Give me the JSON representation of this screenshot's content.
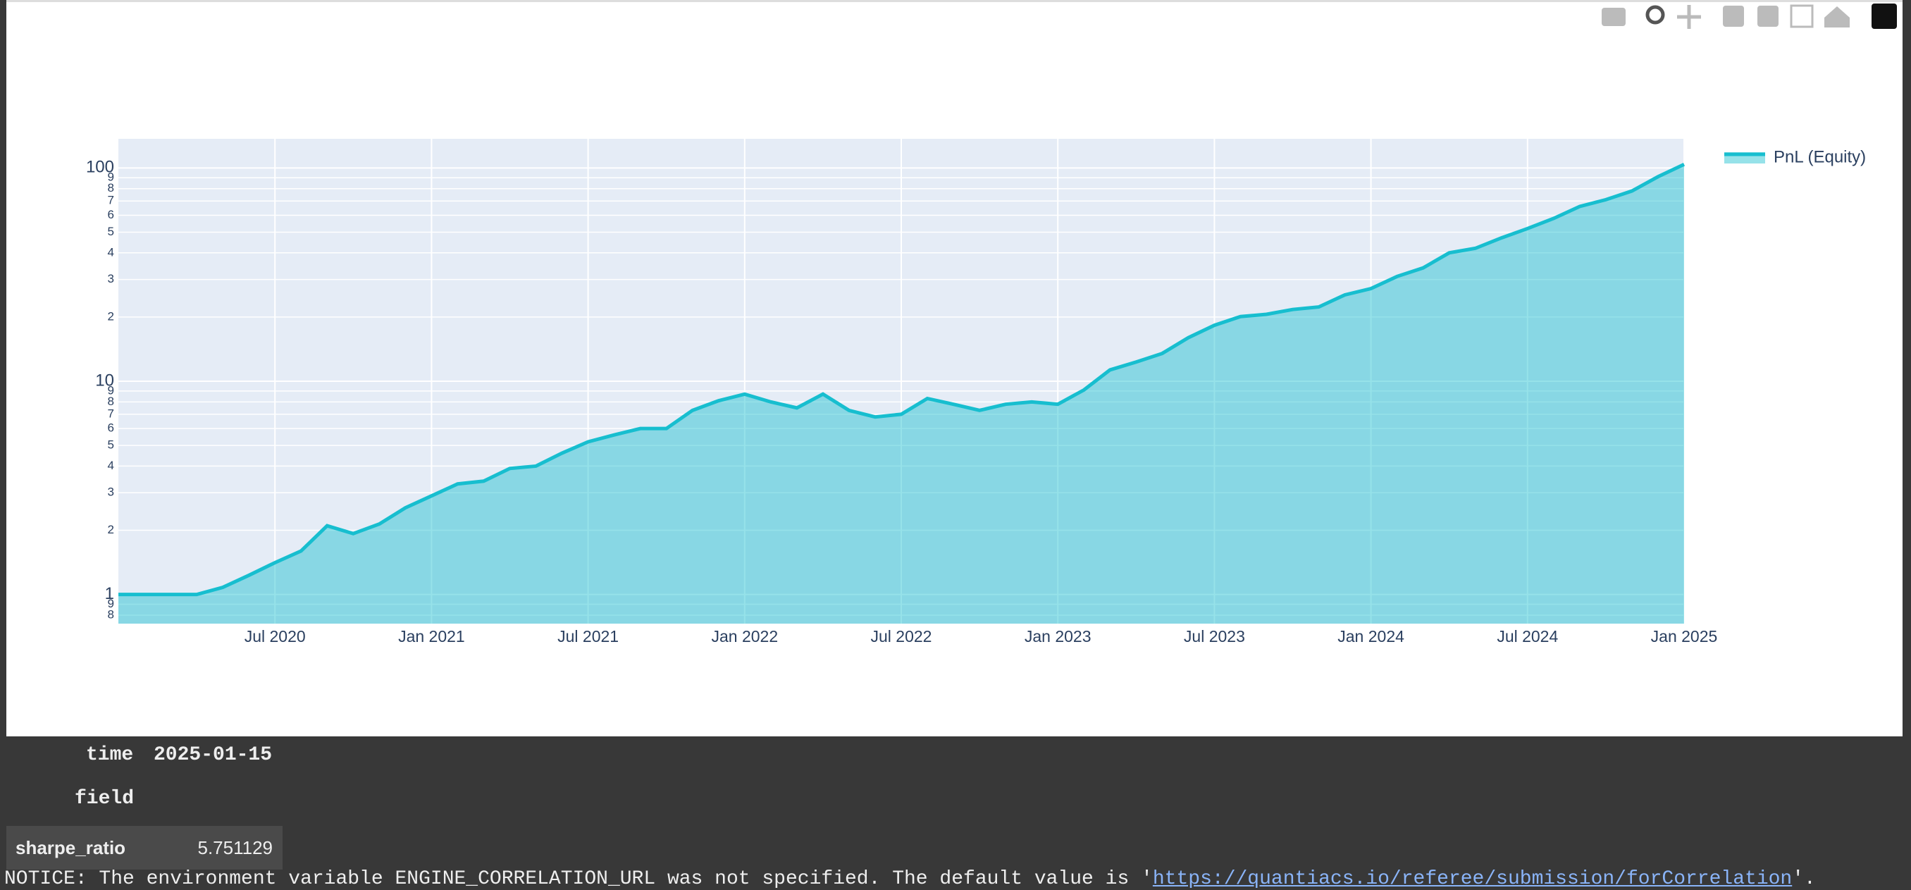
{
  "chart_data": {
    "type": "line",
    "fill": "tozeroy",
    "log_y": true,
    "grid": true,
    "legend": "right",
    "x": [
      "2020-01",
      "2020-02",
      "2020-03",
      "2020-04",
      "2020-05",
      "2020-06",
      "2020-07",
      "2020-08",
      "2020-09",
      "2020-10",
      "2020-11",
      "2020-12",
      "2021-01",
      "2021-02",
      "2021-03",
      "2021-04",
      "2021-05",
      "2021-06",
      "2021-07",
      "2021-08",
      "2021-09",
      "2021-10",
      "2021-11",
      "2021-12",
      "2022-01",
      "2022-02",
      "2022-03",
      "2022-04",
      "2022-05",
      "2022-06",
      "2022-07",
      "2022-08",
      "2022-09",
      "2022-10",
      "2022-11",
      "2022-12",
      "2023-01",
      "2023-02",
      "2023-03",
      "2023-04",
      "2023-05",
      "2023-06",
      "2023-07",
      "2023-08",
      "2023-09",
      "2023-10",
      "2023-11",
      "2023-12",
      "2024-01",
      "2024-02",
      "2024-03",
      "2024-04",
      "2024-05",
      "2024-06",
      "2024-07",
      "2024-08",
      "2024-09",
      "2024-10",
      "2024-11",
      "2024-12",
      "2025-01"
    ],
    "series": [
      {
        "name": "PnL (Equity)",
        "color": "#17becf",
        "values": [
          1.0,
          1.0,
          1.0,
          1.0,
          1.08,
          1.23,
          1.41,
          1.6,
          2.1,
          1.93,
          2.14,
          2.55,
          2.9,
          3.3,
          3.4,
          3.9,
          4.0,
          4.6,
          5.2,
          5.6,
          6.0,
          6.0,
          7.3,
          8.1,
          8.7,
          8.0,
          7.5,
          8.7,
          7.3,
          6.8,
          7.0,
          8.3,
          7.8,
          7.3,
          7.8,
          8.0,
          7.8,
          9.1,
          11.3,
          12.3,
          13.5,
          16.0,
          18.3,
          20.1,
          20.6,
          21.7,
          22.3,
          25.4,
          27.2,
          31.0,
          34,
          40,
          42,
          47,
          52,
          58,
          66,
          71,
          78,
          91,
          104
        ]
      }
    ],
    "xlim": [
      "2020-01",
      "2025-01"
    ],
    "xticks": [
      {
        "value": "2020-07",
        "label": "Jul 2020"
      },
      {
        "value": "2021-01",
        "label": "Jan 2021"
      },
      {
        "value": "2021-07",
        "label": "Jul 2021"
      },
      {
        "value": "2022-01",
        "label": "Jan 2022"
      },
      {
        "value": "2022-07",
        "label": "Jul 2022"
      },
      {
        "value": "2023-01",
        "label": "Jan 2023"
      },
      {
        "value": "2023-07",
        "label": "Jul 2023"
      },
      {
        "value": "2024-01",
        "label": "Jan 2024"
      },
      {
        "value": "2024-07",
        "label": "Jul 2024"
      },
      {
        "value": "2025-01",
        "label": "Jan 2025"
      }
    ],
    "ylim": [
      0.73,
      137
    ],
    "yticks": [
      {
        "value": 0.8,
        "label": "8"
      },
      {
        "value": 0.9,
        "label": "9"
      },
      1,
      2,
      3,
      4,
      5,
      6,
      7,
      8,
      9,
      10,
      {
        "value": 20,
        "label": "2"
      },
      {
        "value": 30,
        "label": "3"
      },
      {
        "value": 40,
        "label": "4"
      },
      {
        "value": 50,
        "label": "5"
      },
      {
        "value": 60,
        "label": "6"
      },
      {
        "value": 70,
        "label": "7"
      },
      {
        "value": 80,
        "label": "8"
      },
      {
        "value": 90,
        "label": "9"
      },
      100
    ]
  },
  "output": {
    "index_name": "time",
    "index_value": "2025-01-15",
    "column_name": "field",
    "rows": [
      [
        "sharpe_ratio",
        5.751129
      ]
    ]
  },
  "notice": {
    "text": "NOTICE: The environment variable ENGINE_CORRELATION_URL was not specified. The default value is '",
    "link": "https://quantiacs.io/referee/submission/forCorrelation",
    "end": "'."
  }
}
